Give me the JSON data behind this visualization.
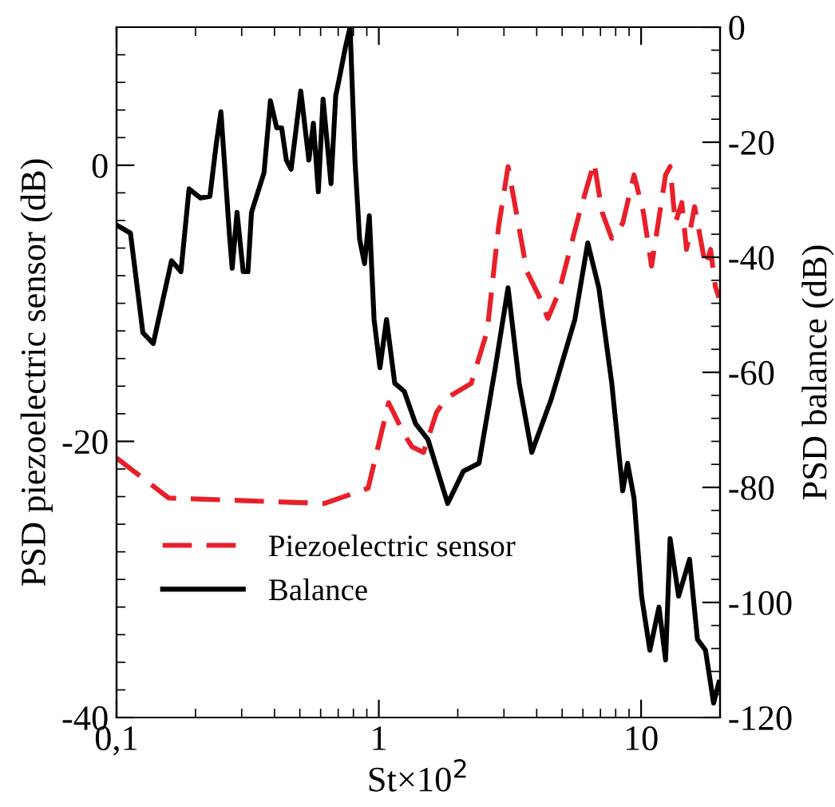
{
  "chart_data": {
    "type": "line",
    "xlabel": "St×10$^{2}$",
    "ylabel": "PSD piezoelectric sensor (dB)",
    "y2label": "PSD balance (dB)",
    "log": "x",
    "xlim": [
      0.1,
      20
    ],
    "xticks": [
      {
        "value": 0.1,
        "label": "0,1"
      },
      1,
      10
    ],
    "ylim": [
      -40,
      10
    ],
    "yticks": [
      -40,
      -20,
      0
    ],
    "y2lim": [
      -120,
      0
    ],
    "y2ticks": [
      -120,
      -100,
      -80,
      -60,
      -40,
      -20,
      0
    ],
    "legend": "bottom left",
    "grid": false,
    "series": [
      {
        "name": "Piezoelectric sensor",
        "color": "#e8202a",
        "line_style": "dashed",
        "x": [
          0.1,
          0.158,
          0.62,
          0.91,
          1.09,
          1.25,
          1.34,
          1.48,
          1.66,
          1.8,
          2.25,
          2.59,
          2.86,
          3.11,
          3.67,
          4.11,
          4.41,
          4.86,
          5.83,
          6.62,
          7.1,
          7.73,
          8.51,
          9.4,
          10.2,
          10.96,
          12.4,
          12.9,
          13.5,
          14.3,
          14.9,
          16.0,
          17.6,
          18.4,
          19.2,
          19.8
        ],
        "values": [
          -21.2,
          -24.1,
          -24.5,
          -23.4,
          -17.2,
          -19.5,
          -20.4,
          -20.8,
          -17.9,
          -16.9,
          -15.8,
          -12.0,
          -4.5,
          -0.1,
          -7.7,
          -9.6,
          -11.1,
          -9.2,
          -3.4,
          0.2,
          -3.4,
          -5.3,
          -4.2,
          -0.7,
          -3.4,
          -7.3,
          -0.7,
          -0.1,
          -4.2,
          -2.7,
          -6.1,
          -3.0,
          -7.3,
          -6.1,
          -8.8,
          -9.6
        ]
      },
      {
        "name": "Balance",
        "color": "#000000",
        "line_style": "solid",
        "axis": "y2",
        "x": [
          0.1,
          0.113,
          0.126,
          0.138,
          0.162,
          0.176,
          0.189,
          0.209,
          0.227,
          0.24,
          0.25,
          0.269,
          0.276,
          0.288,
          0.304,
          0.317,
          0.327,
          0.365,
          0.386,
          0.408,
          0.426,
          0.444,
          0.463,
          0.504,
          0.541,
          0.563,
          0.588,
          0.613,
          0.657,
          0.685,
          0.705,
          0.745,
          0.777,
          0.811,
          0.845,
          0.882,
          0.92,
          0.959,
          1.01,
          1.07,
          1.15,
          1.25,
          1.38,
          1.54,
          1.83,
          2.1,
          2.41,
          2.78,
          3.11,
          3.43,
          3.83,
          4.54,
          5.59,
          6.26,
          6.9,
          7.73,
          8.51,
          8.88,
          9.4,
          10.04,
          10.8,
          11.7,
          12.4,
          12.9,
          13.9,
          15.3,
          16.4,
          17.6,
          18.9,
          19.8
        ],
        "values": [
          -34.4,
          -35.8,
          -53.1,
          -55.0,
          -40.6,
          -42.5,
          -28.1,
          -29.7,
          -29.4,
          -20.3,
          -14.7,
          -35.6,
          -41.9,
          -32.2,
          -42.5,
          -42.5,
          -32.2,
          -25.3,
          -12.8,
          -17.5,
          -17.5,
          -23.1,
          -24.7,
          -11.1,
          -23.1,
          -16.7,
          -28.6,
          -12.5,
          -27.2,
          -11.9,
          -9.2,
          -3.6,
          0,
          -23.1,
          -36.9,
          -41.1,
          -32.8,
          -50.8,
          -59.2,
          -50.8,
          -61.9,
          -63.3,
          -68.9,
          -71.7,
          -82.8,
          -77.2,
          -75.8,
          -59.2,
          -45.3,
          -61.9,
          -73.9,
          -64.7,
          -50.8,
          -37.5,
          -45.3,
          -61.9,
          -80.6,
          -75.8,
          -81.9,
          -98.9,
          -108.3,
          -100.8,
          -110.0,
          -88.9,
          -98.9,
          -92.5,
          -106.4,
          -108.3,
          -117.5,
          -113.9
        ]
      }
    ]
  }
}
